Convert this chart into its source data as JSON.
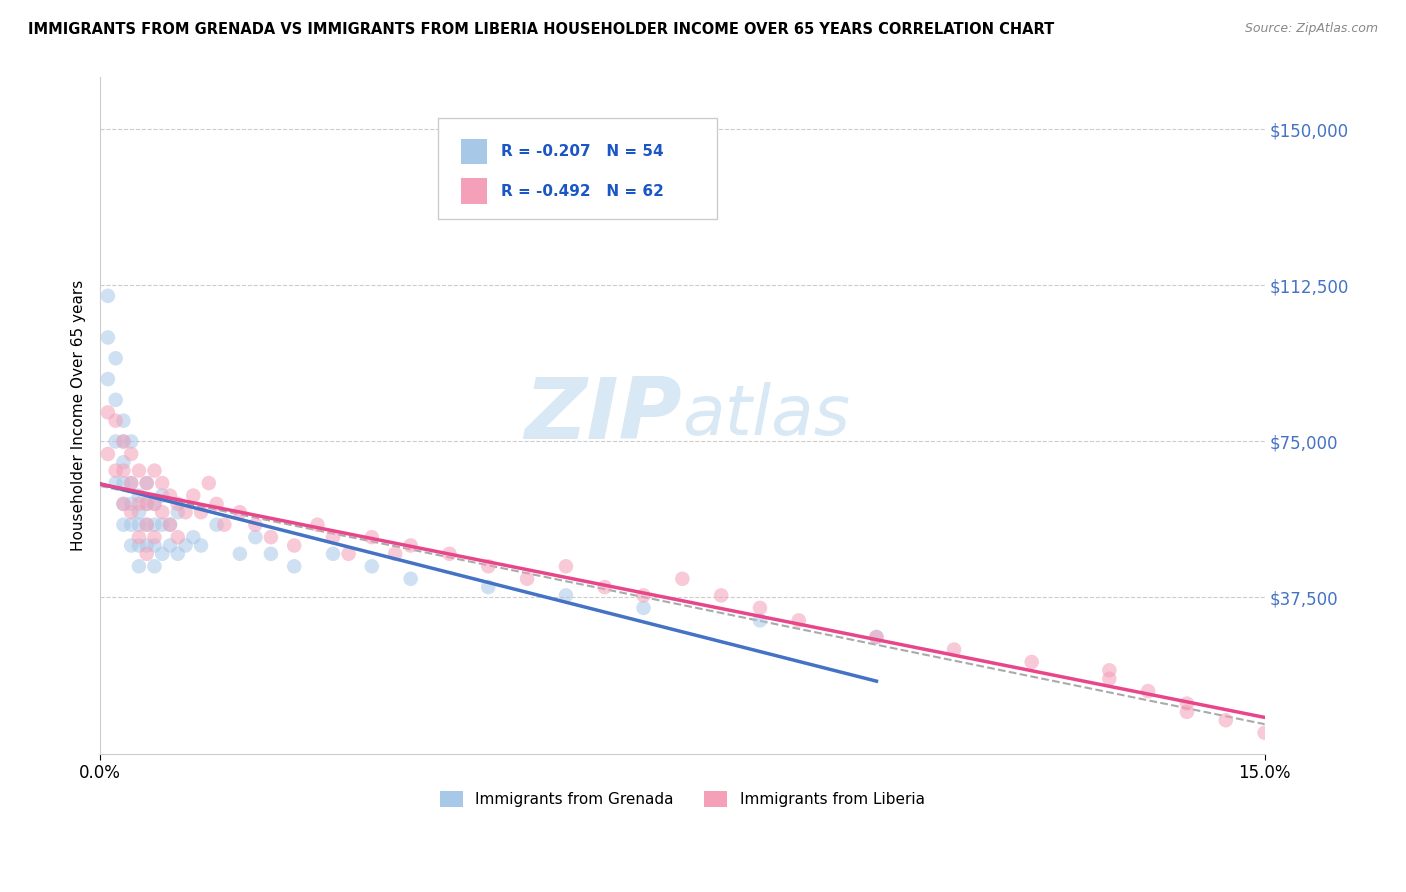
{
  "title": "IMMIGRANTS FROM GRENADA VS IMMIGRANTS FROM LIBERIA HOUSEHOLDER INCOME OVER 65 YEARS CORRELATION CHART",
  "source": "Source: ZipAtlas.com",
  "ylabel": "Householder Income Over 65 years",
  "xlim": [
    0.0,
    0.15
  ],
  "ylim": [
    0,
    162500
  ],
  "yticks": [
    37500,
    75000,
    112500,
    150000
  ],
  "ytick_labels": [
    "$37,500",
    "$75,000",
    "$112,500",
    "$150,000"
  ],
  "xticks": [
    0.0,
    0.15
  ],
  "xtick_labels": [
    "0.0%",
    "15.0%"
  ],
  "legend_label1": "Immigrants from Grenada",
  "legend_label2": "Immigrants from Liberia",
  "color_grenada": "#a8c8e8",
  "color_liberia": "#f4a0b8",
  "color_line_grenada": "#4472c4",
  "color_line_liberia": "#e8468a",
  "color_dashed": "#aaaaaa",
  "title_fontsize": 10.5,
  "source_fontsize": 9,
  "scatter_alpha": 0.55,
  "scatter_size": 110,
  "background_color": "#ffffff",
  "grenada_x": [
    0.001,
    0.001,
    0.001,
    0.002,
    0.002,
    0.002,
    0.002,
    0.003,
    0.003,
    0.003,
    0.003,
    0.003,
    0.003,
    0.004,
    0.004,
    0.004,
    0.004,
    0.004,
    0.005,
    0.005,
    0.005,
    0.005,
    0.005,
    0.006,
    0.006,
    0.006,
    0.006,
    0.007,
    0.007,
    0.007,
    0.007,
    0.008,
    0.008,
    0.008,
    0.009,
    0.009,
    0.01,
    0.01,
    0.011,
    0.012,
    0.013,
    0.015,
    0.018,
    0.02,
    0.022,
    0.025,
    0.03,
    0.035,
    0.04,
    0.05,
    0.06,
    0.07,
    0.085,
    0.1
  ],
  "grenada_y": [
    110000,
    100000,
    90000,
    95000,
    85000,
    75000,
    65000,
    80000,
    75000,
    70000,
    65000,
    60000,
    55000,
    75000,
    65000,
    60000,
    55000,
    50000,
    62000,
    58000,
    55000,
    50000,
    45000,
    65000,
    60000,
    55000,
    50000,
    60000,
    55000,
    50000,
    45000,
    62000,
    55000,
    48000,
    55000,
    50000,
    58000,
    48000,
    50000,
    52000,
    50000,
    55000,
    48000,
    52000,
    48000,
    45000,
    48000,
    45000,
    42000,
    40000,
    38000,
    35000,
    32000,
    28000
  ],
  "liberia_x": [
    0.001,
    0.001,
    0.002,
    0.002,
    0.003,
    0.003,
    0.003,
    0.004,
    0.004,
    0.004,
    0.005,
    0.005,
    0.005,
    0.006,
    0.006,
    0.006,
    0.006,
    0.007,
    0.007,
    0.007,
    0.008,
    0.008,
    0.009,
    0.009,
    0.01,
    0.01,
    0.011,
    0.012,
    0.013,
    0.014,
    0.015,
    0.016,
    0.018,
    0.02,
    0.022,
    0.025,
    0.028,
    0.03,
    0.032,
    0.035,
    0.038,
    0.04,
    0.045,
    0.05,
    0.055,
    0.06,
    0.065,
    0.07,
    0.075,
    0.08,
    0.085,
    0.09,
    0.1,
    0.11,
    0.12,
    0.13,
    0.135,
    0.14,
    0.145,
    0.15,
    0.13,
    0.14
  ],
  "liberia_y": [
    82000,
    72000,
    80000,
    68000,
    75000,
    68000,
    60000,
    72000,
    65000,
    58000,
    68000,
    60000,
    52000,
    65000,
    60000,
    55000,
    48000,
    68000,
    60000,
    52000,
    65000,
    58000,
    62000,
    55000,
    60000,
    52000,
    58000,
    62000,
    58000,
    65000,
    60000,
    55000,
    58000,
    55000,
    52000,
    50000,
    55000,
    52000,
    48000,
    52000,
    48000,
    50000,
    48000,
    45000,
    42000,
    45000,
    40000,
    38000,
    42000,
    38000,
    35000,
    32000,
    28000,
    25000,
    22000,
    18000,
    15000,
    12000,
    8000,
    5000,
    20000,
    10000
  ]
}
